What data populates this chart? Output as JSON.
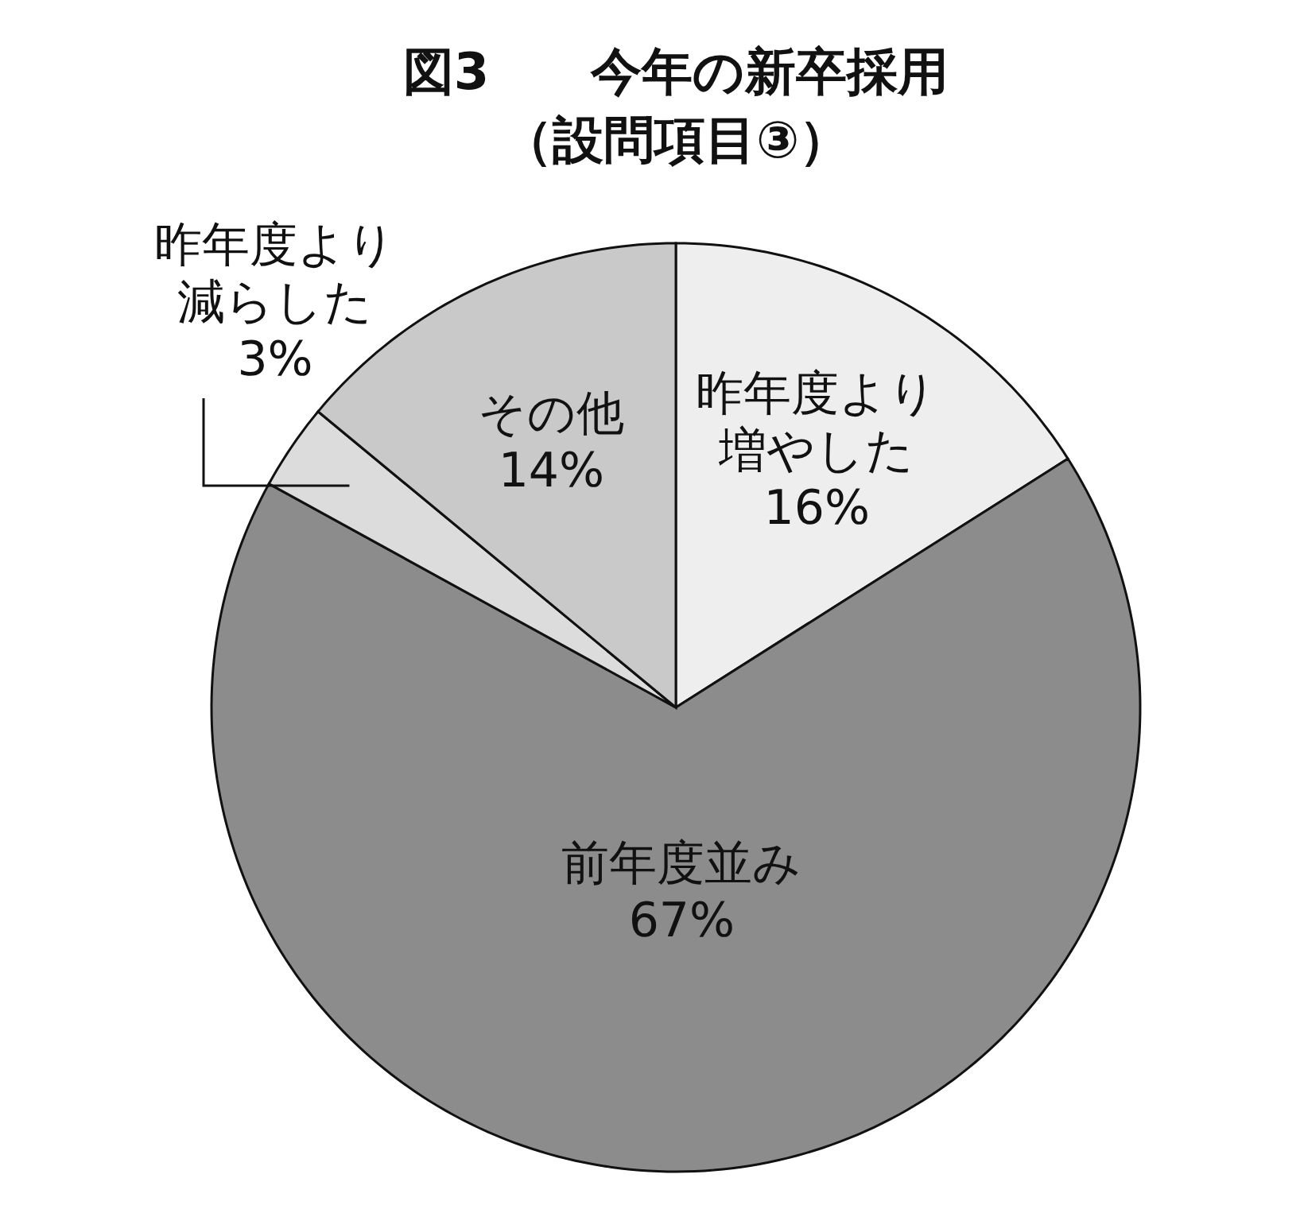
{
  "chart_data": {
    "type": "pie",
    "title": "図3　　今年の新卒採用",
    "subtitle": "（設問項目③）",
    "categories": [
      "昨年度より増やした",
      "前年度並み",
      "昨年度より減らした",
      "その他"
    ],
    "values": [
      16,
      67,
      3,
      14
    ],
    "value_labels": [
      "16%",
      "67%",
      "3%",
      "14%"
    ],
    "colors": [
      "#eeeeee",
      "#8c8c8c",
      "#dcdcdc",
      "#c9c9c9"
    ],
    "data_labels": true
  }
}
